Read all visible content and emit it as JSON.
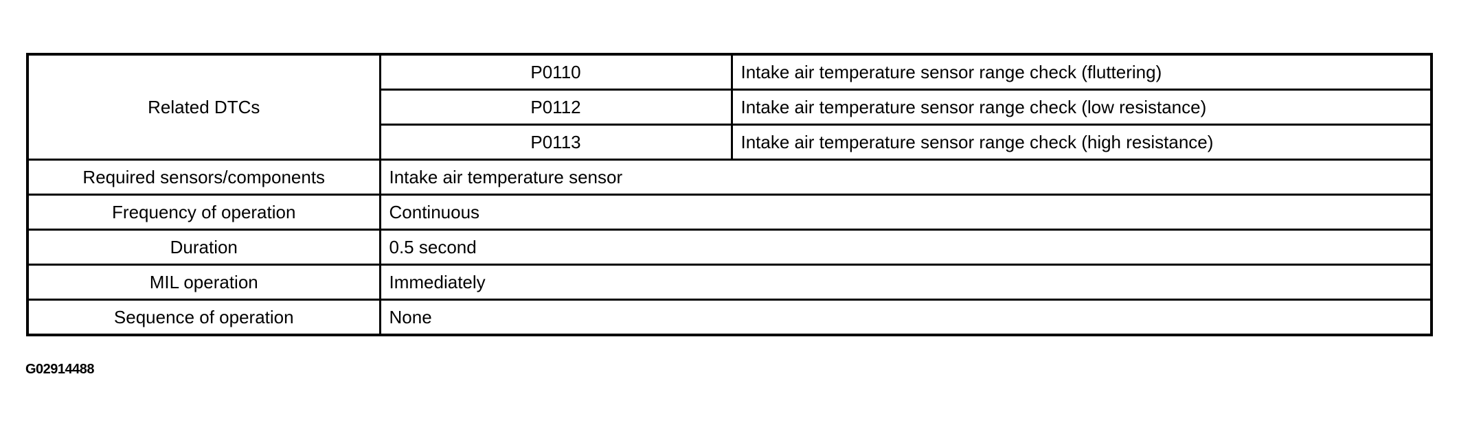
{
  "table": {
    "related_dtcs_label": "Related DTCs",
    "dtcs": [
      {
        "code": "P0110",
        "description": "Intake air temperature sensor range check (fluttering)"
      },
      {
        "code": "P0112",
        "description": "Intake air temperature sensor range check (low resistance)"
      },
      {
        "code": "P0113",
        "description": "Intake air temperature sensor range check (high resistance)"
      }
    ],
    "rows": [
      {
        "label": "Required sensors/components",
        "value": "Intake air temperature sensor"
      },
      {
        "label": "Frequency of operation",
        "value": "Continuous"
      },
      {
        "label": "Duration",
        "value": "0.5 second"
      },
      {
        "label": "MIL operation",
        "value": "Immediately"
      },
      {
        "label": "Sequence of operation",
        "value": "None"
      }
    ]
  },
  "figure_id": "G02914488"
}
